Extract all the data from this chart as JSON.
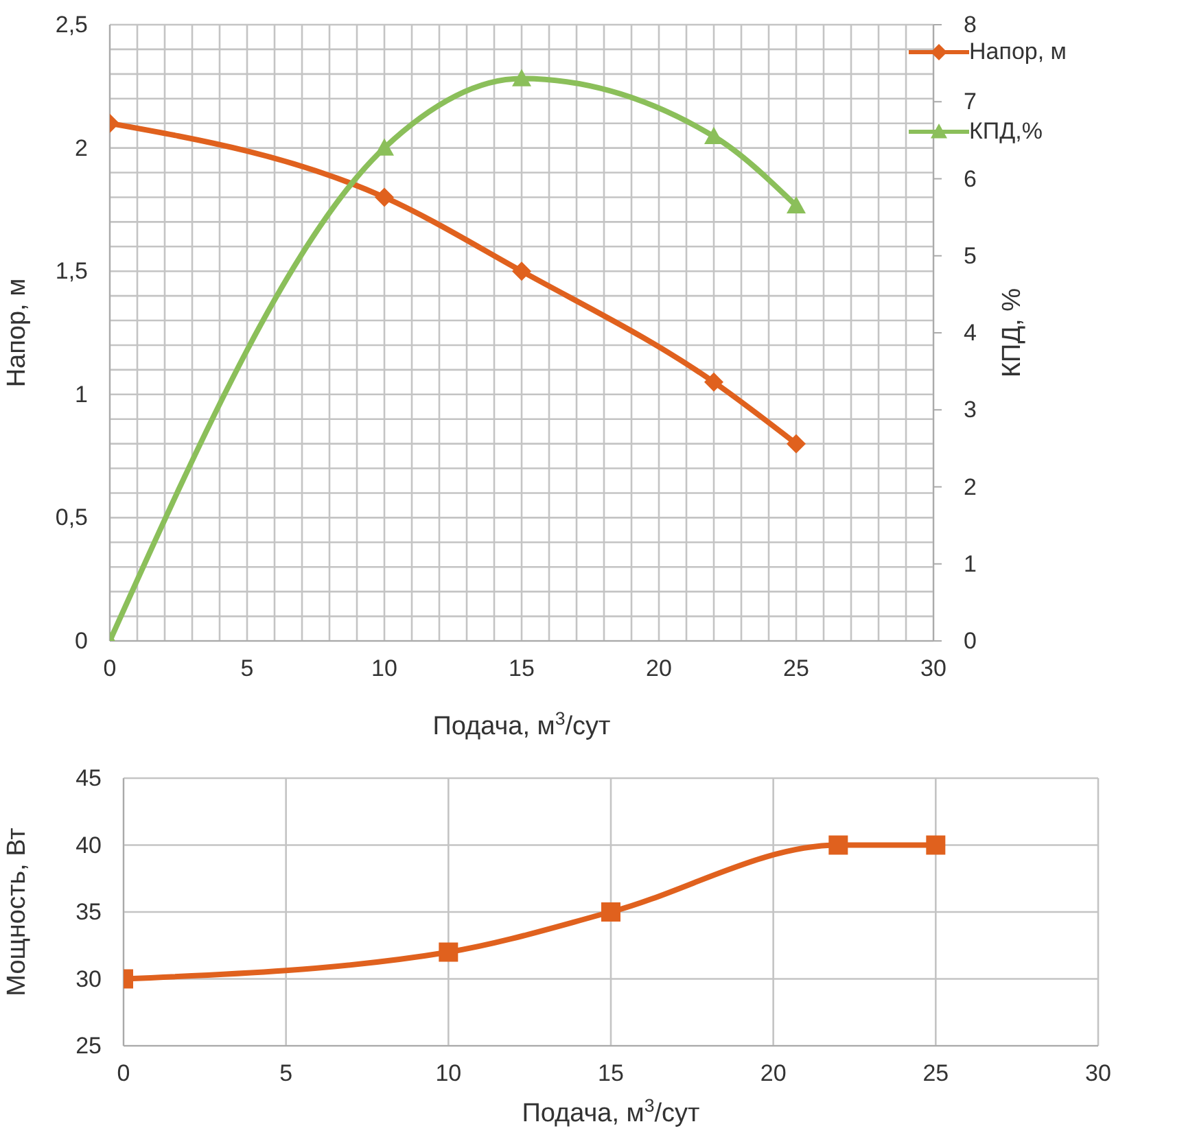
{
  "chart_data": [
    {
      "type": "line",
      "xlabel": "Подача, м$^{3}$/сут",
      "ylabel": "Напор, м",
      "y2label": "КПД, %",
      "x": [
        0,
        10,
        15,
        22,
        25
      ],
      "series": [
        {
          "name": "Напор, м",
          "color": "#e0611e",
          "marker": "diamond",
          "values": [
            2.1,
            1.8,
            1.5,
            1.05,
            0.8
          ]
        },
        {
          "name": "КПД,%",
          "color": "#8bbf5a",
          "marker": "triangle",
          "axis": "y2",
          "values": [
            0,
            6.4,
            7.3,
            6.55,
            5.65
          ]
        }
      ],
      "xlim": [
        0,
        30
      ],
      "xticks": [
        0,
        {
          "value": 1,
          "label": null
        },
        {
          "value": 2,
          "label": null
        },
        {
          "value": 3,
          "label": null
        },
        {
          "value": 4,
          "label": null
        },
        5,
        {
          "value": 6,
          "label": null
        },
        {
          "value": 7,
          "label": null
        },
        {
          "value": 8,
          "label": null
        },
        {
          "value": 9,
          "label": null
        },
        10,
        {
          "value": 11,
          "label": null
        },
        {
          "value": 12,
          "label": null
        },
        {
          "value": 13,
          "label": null
        },
        {
          "value": 14,
          "label": null
        },
        15,
        {
          "value": 16,
          "label": null
        },
        {
          "value": 17,
          "label": null
        },
        {
          "value": 18,
          "label": null
        },
        {
          "value": 19,
          "label": null
        },
        20,
        {
          "value": 21,
          "label": null
        },
        {
          "value": 22,
          "label": null
        },
        {
          "value": 23,
          "label": null
        },
        {
          "value": 24,
          "label": null
        },
        25,
        {
          "value": 26,
          "label": null
        },
        {
          "value": 27,
          "label": null
        },
        {
          "value": 28,
          "label": null
        },
        {
          "value": 29,
          "label": null
        },
        30
      ],
      "ylim": [
        0,
        2.5
      ],
      "yticks": [
        0,
        {
          "value": 0.1,
          "label": null
        },
        {
          "value": 0.2,
          "label": null
        },
        {
          "value": 0.3,
          "label": null
        },
        {
          "value": 0.4,
          "label": null
        },
        {
          "value": 0.5,
          "label": "0,5"
        },
        {
          "value": 0.6,
          "label": null
        },
        {
          "value": 0.7,
          "label": null
        },
        {
          "value": 0.8,
          "label": null
        },
        {
          "value": 0.9,
          "label": null
        },
        1,
        {
          "value": 1.1,
          "label": null
        },
        {
          "value": 1.2,
          "label": null
        },
        {
          "value": 1.3,
          "label": null
        },
        {
          "value": 1.4,
          "label": null
        },
        {
          "value": 1.5,
          "label": "1,5"
        },
        {
          "value": 1.6,
          "label": null
        },
        {
          "value": 1.7,
          "label": null
        },
        {
          "value": 1.8,
          "label": null
        },
        {
          "value": 1.9,
          "label": null
        },
        2,
        {
          "value": 2.1,
          "label": null
        },
        {
          "value": 2.2,
          "label": null
        },
        {
          "value": 2.3,
          "label": null
        },
        {
          "value": 2.4,
          "label": null
        },
        {
          "value": 2.5,
          "label": "2,5"
        }
      ],
      "y2lim": [
        0,
        8
      ],
      "y2ticks": [
        0,
        1,
        2,
        3,
        4,
        5,
        6,
        7,
        8
      ],
      "grid": true,
      "legend": "top right"
    },
    {
      "type": "line",
      "xlabel": "Подача, м$^{3}$/сут",
      "ylabel": "Мощность, Вт",
      "x": [
        0,
        10,
        15,
        22,
        25
      ],
      "series": [
        {
          "color": "#e0611e",
          "marker": "square",
          "values": [
            30,
            32,
            35,
            40,
            40
          ]
        }
      ],
      "xlim": [
        0,
        30
      ],
      "xticks": [
        0,
        5,
        10,
        15,
        20,
        25,
        30
      ],
      "ylim": [
        25,
        45
      ],
      "yticks": [
        25,
        30,
        35,
        40,
        45
      ],
      "grid": true
    }
  ]
}
